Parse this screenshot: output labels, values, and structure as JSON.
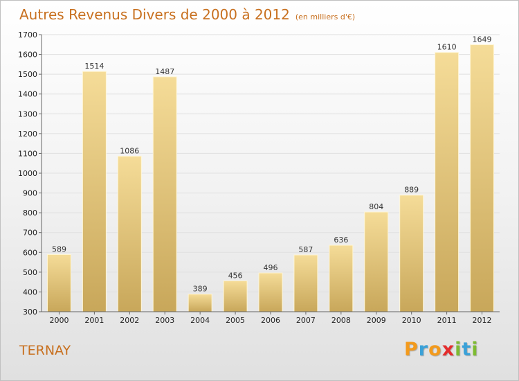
{
  "title": "Autres Revenus Divers de 2000 à 2012",
  "unit": "(en milliers d'€)",
  "commune": "TERNAY",
  "logo": {
    "letters": [
      "P",
      "r",
      "o",
      "x",
      "i",
      "t",
      "i"
    ],
    "colors": [
      "#f39a1c",
      "#3aa1d8",
      "#f39a1c",
      "#e52d2d",
      "#7dbb31",
      "#3aa1d8",
      "#7dbb31"
    ]
  },
  "colors": {
    "title": "#c8701f",
    "bar_light": "#f5dc98",
    "bar_dark": "#c8a75a",
    "grid": "#e0e0e0",
    "axis": "#666666"
  },
  "chart_data": {
    "type": "bar",
    "categories": [
      "2000",
      "2001",
      "2002",
      "2003",
      "2004",
      "2005",
      "2006",
      "2007",
      "2008",
      "2009",
      "2010",
      "2011",
      "2012"
    ],
    "values": [
      589,
      1514,
      1086,
      1487,
      389,
      456,
      496,
      587,
      636,
      804,
      889,
      1610,
      1649
    ],
    "ylim": [
      300,
      1700
    ],
    "yticks": [
      300,
      400,
      500,
      600,
      700,
      800,
      900,
      1000,
      1100,
      1200,
      1300,
      1400,
      1500,
      1600,
      1700
    ],
    "grid": true
  }
}
